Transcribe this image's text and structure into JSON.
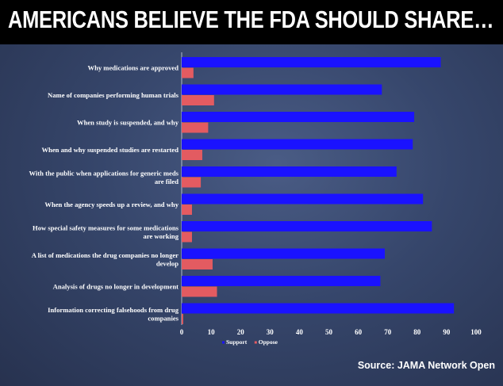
{
  "chart_data": {
    "type": "bar",
    "orientation": "horizontal",
    "title": "AMERICANS BELIEVE THE FDA SHOULD SHARE…",
    "categories": [
      "Why medications are approved",
      "Name of companies performing human trials",
      "When study is suspended, and why",
      "When and why suspended studies are restarted",
      "With the public when applications for generic meds are filed",
      "When the agency speeds up a review, and why",
      "How special safety measures for some medications are working",
      "A list of medications the drug companies no longer develop",
      "Analysis of drugs no longer in development",
      "Information correcting falsehoods from drug companies"
    ],
    "category_lines": [
      [
        "Why medications are approved"
      ],
      [
        "Name of companies performing human trials"
      ],
      [
        "When study is suspended, and why"
      ],
      [
        "When and why suspended studies are restarted"
      ],
      [
        "With the public when applications for generic meds",
        "are filed"
      ],
      [
        "When the agency speeds up a review, and why"
      ],
      [
        "How special safety measures for some medications",
        "are working"
      ],
      [
        "A list of medications the drug companies no longer",
        "develop"
      ],
      [
        "Analysis of drugs no longer in development"
      ],
      [
        "Information correcting falsehoods from drug",
        "companies"
      ]
    ],
    "series": [
      {
        "name": "Support",
        "color": "#1a12ff",
        "values": [
          88,
          68,
          79,
          78.5,
          73,
          82,
          85,
          69,
          67.5,
          92.5
        ]
      },
      {
        "name": "Oppose",
        "color": "#e35b61",
        "values": [
          4,
          11,
          9,
          7,
          6.5,
          3.5,
          3.5,
          10.5,
          12,
          0.5
        ]
      }
    ],
    "xlim": [
      0,
      100
    ],
    "xticks": [
      0,
      10,
      20,
      30,
      40,
      50,
      60,
      70,
      80,
      90,
      100
    ],
    "xtick_labels": [
      "0",
      "10",
      "20",
      "30",
      "40",
      "50",
      "60",
      "70",
      "80",
      "90",
      "100"
    ],
    "xlabel": "",
    "ylabel": "",
    "grid": false,
    "legend_placement": "bottom-center"
  },
  "source": "Source: JAMA Network Open"
}
